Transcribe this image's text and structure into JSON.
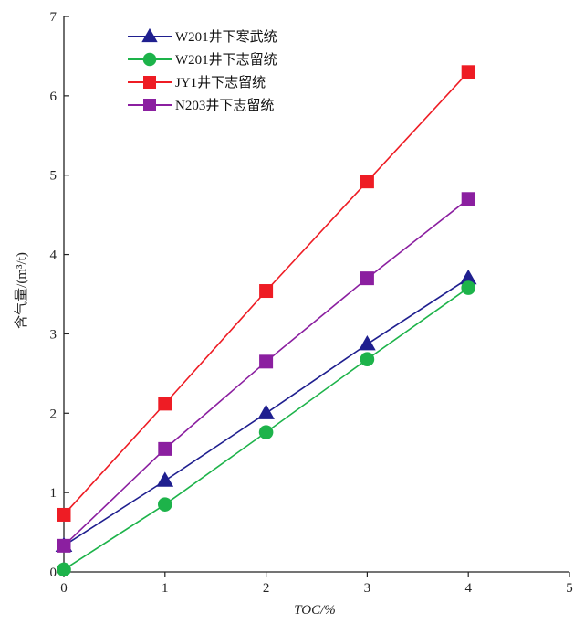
{
  "chart_data": {
    "type": "line",
    "xlabel": "TOC/%",
    "ylabel": "含气量/(m³/t)",
    "xlim": [
      0,
      5
    ],
    "ylim": [
      0,
      7
    ],
    "x_ticks": [
      "0",
      "1",
      "2",
      "3",
      "4",
      "5"
    ],
    "y_ticks": [
      "0",
      "1",
      "2",
      "3",
      "4",
      "5",
      "6",
      "7"
    ],
    "grid": false,
    "legend_position": "top-left",
    "x": [
      0,
      1,
      2,
      3,
      4
    ],
    "series": [
      {
        "name": "W201井下寒武统",
        "color": "#1f1f8f",
        "marker": "triangle",
        "values": [
          0.33,
          1.15,
          2.0,
          2.87,
          3.7
        ]
      },
      {
        "name": "W201井下志留统",
        "color": "#1db34a",
        "marker": "circle",
        "values": [
          0.03,
          0.85,
          1.76,
          2.68,
          3.58
        ]
      },
      {
        "name": "JY1井下志留统",
        "color": "#ee1c24",
        "marker": "square",
        "values": [
          0.72,
          2.12,
          3.54,
          4.92,
          6.3
        ]
      },
      {
        "name": "N203井下志留统",
        "color": "#8b1fa0",
        "marker": "square",
        "values": [
          0.33,
          1.55,
          2.65,
          3.7,
          4.7
        ]
      }
    ]
  }
}
